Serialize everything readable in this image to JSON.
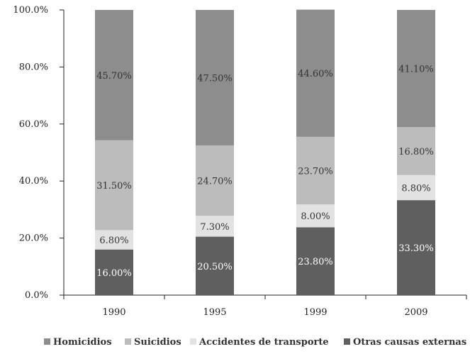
{
  "chart_data": {
    "type": "bar",
    "stacked": true,
    "categories": [
      "1990",
      "1995",
      "1999",
      "2009"
    ],
    "series": [
      {
        "name": "Otras causas externas",
        "values": [
          16.0,
          20.5,
          23.8,
          33.3
        ],
        "labels": [
          "16.00%",
          "20.50%",
          "23.80%",
          "33.30%"
        ],
        "color": "#5f5f5f",
        "label_color": "#ffffff"
      },
      {
        "name": "Accidentes de transporte",
        "values": [
          6.8,
          7.3,
          8.0,
          8.8
        ],
        "labels": [
          "6.80%",
          "7.30%",
          "8.00%",
          "8.80%"
        ],
        "color": "#e2e2e2",
        "label_color": "#333333"
      },
      {
        "name": "Suicidios",
        "values": [
          31.5,
          24.7,
          23.7,
          16.8
        ],
        "labels": [
          "31.50%",
          "24.70%",
          "23.70%",
          "16.80%"
        ],
        "color": "#bcbcbc",
        "label_color": "#333333"
      },
      {
        "name": "Homicidios",
        "values": [
          45.7,
          47.5,
          44.6,
          41.1
        ],
        "labels": [
          "45.70%",
          "47.50%",
          "44.60%",
          "41.10%"
        ],
        "color": "#8d8d8d",
        "label_color": "#333333"
      }
    ],
    "y_ticks": [
      "0.0%",
      "20.0%",
      "40.0%",
      "60.0%",
      "80.0%",
      "100.0%"
    ],
    "ylim": [
      0,
      100
    ],
    "legend_order": [
      "Homicidios",
      "Suicidios",
      "Accidentes de transporte",
      "Otras causas externas"
    ],
    "legend_position": "bottom",
    "grid": false,
    "title": "",
    "xlabel": "",
    "ylabel": ""
  }
}
